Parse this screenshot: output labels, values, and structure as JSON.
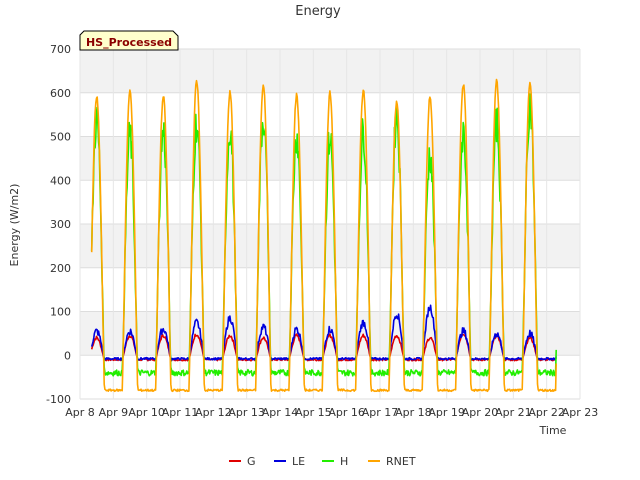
{
  "chart_data": {
    "type": "line",
    "title": "Energy",
    "badge": "HS_Processed",
    "xlabel": "Time",
    "ylabel": "Energy (W/m2)",
    "ylim": [
      -100,
      700
    ],
    "xlim": [
      8,
      23
    ],
    "yticks": [
      -100,
      0,
      100,
      200,
      300,
      400,
      500,
      600,
      700
    ],
    "xticks": [
      {
        "value": 8,
        "label": "Apr 8"
      },
      {
        "value": 9,
        "label": "Apr 9"
      },
      {
        "value": 10,
        "label": "Apr 10"
      },
      {
        "value": 11,
        "label": "Apr 11"
      },
      {
        "value": 12,
        "label": "Apr 12"
      },
      {
        "value": 13,
        "label": "Apr 13"
      },
      {
        "value": 14,
        "label": "Apr 14"
      },
      {
        "value": 15,
        "label": "Apr 15"
      },
      {
        "value": 16,
        "label": "Apr 16"
      },
      {
        "value": 17,
        "label": "Apr 17"
      },
      {
        "value": 18,
        "label": "Apr 18"
      },
      {
        "value": 19,
        "label": "Apr 19"
      },
      {
        "value": 20,
        "label": "Apr 20"
      },
      {
        "value": 21,
        "label": "Apr 21"
      },
      {
        "value": 22,
        "label": "Apr 22"
      },
      {
        "value": 23,
        "label": "Apr 23"
      }
    ],
    "grid": true,
    "legend_position": "bottom",
    "day_range": [
      8.35,
      22.3
    ],
    "days": [
      8.5,
      9.5,
      10.5,
      11.5,
      12.5,
      13.5,
      14.5,
      15.5,
      16.5,
      17.5,
      18.5,
      19.5,
      20.5,
      21.5
    ],
    "series": [
      {
        "name": "G",
        "color": "#e00000",
        "night": -10,
        "peaks": [
          40,
          45,
          45,
          48,
          45,
          40,
          45,
          45,
          45,
          45,
          40,
          50,
          45,
          40
        ]
      },
      {
        "name": "LE",
        "color": "#0000dd",
        "night": -8,
        "peaks": [
          55,
          55,
          60,
          75,
          85,
          65,
          60,
          60,
          75,
          95,
          110,
          55,
          50,
          50
        ]
      },
      {
        "name": "H",
        "color": "#22ee00",
        "night": -40,
        "peaks": [
          540,
          500,
          510,
          530,
          520,
          545,
          505,
          500,
          510,
          550,
          460,
          510,
          530,
          575
        ]
      },
      {
        "name": "RNET",
        "color": "#ffa500",
        "night": -80,
        "peaks": [
          590,
          605,
          590,
          625,
          600,
          615,
          595,
          600,
          605,
          580,
          590,
          620,
          625,
          620
        ]
      }
    ]
  }
}
